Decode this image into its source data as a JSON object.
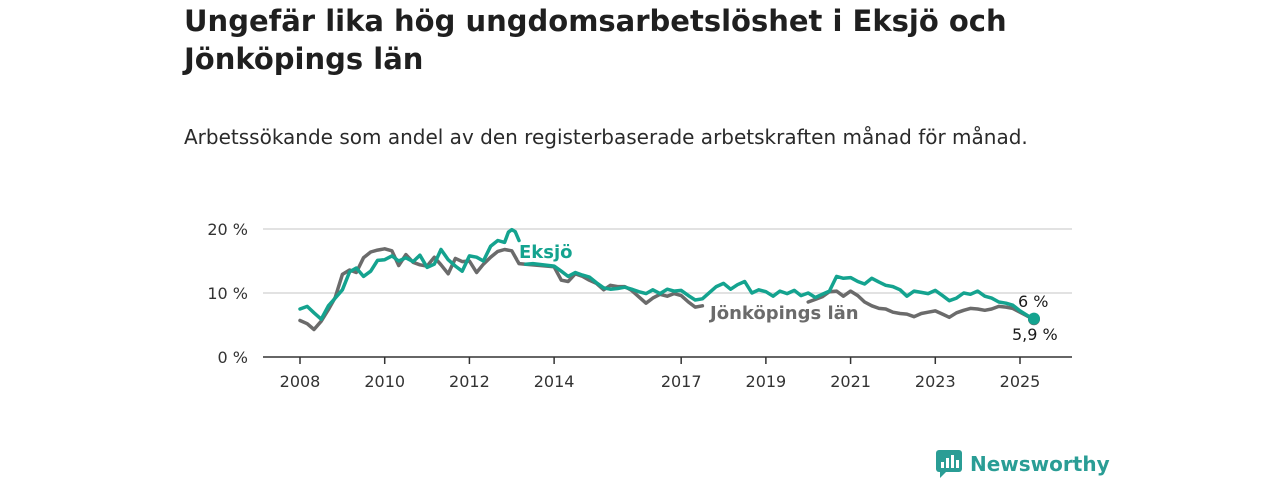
{
  "title": "Ungefär lika hög ungdomsarbetslöshet i Eksjö och Jönköpings län",
  "subtitle": "Arbetssökande som andel av den registerbaserade arbetskraften månad för månad.",
  "brand": {
    "name": "Newsworthy",
    "icon": "bar-chart-bubble-icon"
  },
  "colors": {
    "eksjo": "#14a38f",
    "jonkoping": "#6b6b6b",
    "grid": "#d8d8d8",
    "axis": "#333333",
    "brand": "#2a9d95"
  },
  "chart_data": {
    "type": "line",
    "title": "Ungefär lika hög ungdomsarbetslöshet i Eksjö och Jönköpings län",
    "subtitle": "Arbetssökande som andel av den registerbaserade arbetskraften månad för månad.",
    "xlabel": "",
    "ylabel": "",
    "xlim": [
      2008,
      2025.5
    ],
    "ylim": [
      0,
      20
    ],
    "grid": true,
    "legend": "inline",
    "x_ticks": [
      {
        "value": 2008,
        "label": "2008"
      },
      {
        "value": 2010,
        "label": "2010"
      },
      {
        "value": 2012,
        "label": "2012"
      },
      {
        "value": 2014,
        "label": "2014"
      },
      {
        "value": 2017,
        "label": "2017"
      },
      {
        "value": 2019,
        "label": "2019"
      },
      {
        "value": 2021,
        "label": "2021"
      },
      {
        "value": 2023,
        "label": "2023"
      },
      {
        "value": 2025,
        "label": "2025"
      }
    ],
    "y_ticks": [
      {
        "value": 0,
        "label": "0 %"
      },
      {
        "value": 10,
        "label": "10 %"
      },
      {
        "value": 20,
        "label": "20 %"
      }
    ],
    "series": [
      {
        "name": "Eksjö",
        "color": "#14a38f",
        "end_label": "6 %",
        "points": [
          [
            2008.0,
            7.5
          ],
          [
            2008.17,
            7.9
          ],
          [
            2008.33,
            6.9
          ],
          [
            2008.5,
            5.9
          ],
          [
            2008.67,
            8.0
          ],
          [
            2008.83,
            9.2
          ],
          [
            2009.0,
            10.5
          ],
          [
            2009.17,
            13.3
          ],
          [
            2009.33,
            13.9
          ],
          [
            2009.5,
            12.6
          ],
          [
            2009.67,
            13.4
          ],
          [
            2009.83,
            15.1
          ],
          [
            2010.0,
            15.2
          ],
          [
            2010.17,
            15.8
          ],
          [
            2010.33,
            15.0
          ],
          [
            2010.5,
            15.5
          ],
          [
            2010.67,
            14.9
          ],
          [
            2010.83,
            15.9
          ],
          [
            2011.0,
            14.0
          ],
          [
            2011.17,
            14.5
          ],
          [
            2011.33,
            16.8
          ],
          [
            2011.5,
            15.2
          ],
          [
            2011.67,
            14.2
          ],
          [
            2011.83,
            13.4
          ],
          [
            2012.0,
            15.8
          ],
          [
            2012.17,
            15.6
          ],
          [
            2012.33,
            15.0
          ],
          [
            2012.5,
            17.3
          ],
          [
            2012.67,
            18.2
          ],
          [
            2012.83,
            17.9
          ],
          [
            2012.92,
            19.5
          ],
          [
            2013.0,
            19.9
          ],
          [
            2013.08,
            19.6
          ],
          [
            2013.17,
            18.2
          ]
        ]
      },
      {
        "name": "Jönköpings län",
        "color": "#6b6b6b",
        "end_label": "5,9 %",
        "points": [
          [
            2008.0,
            5.7
          ],
          [
            2008.17,
            5.2
          ],
          [
            2008.33,
            4.3
          ],
          [
            2008.5,
            5.6
          ],
          [
            2008.67,
            7.4
          ],
          [
            2008.83,
            9.3
          ],
          [
            2009.0,
            12.9
          ],
          [
            2009.17,
            13.6
          ],
          [
            2009.33,
            13.2
          ],
          [
            2009.5,
            15.5
          ],
          [
            2009.67,
            16.4
          ],
          [
            2009.83,
            16.7
          ],
          [
            2010.0,
            16.9
          ],
          [
            2010.17,
            16.6
          ],
          [
            2010.33,
            14.3
          ],
          [
            2010.5,
            16.0
          ],
          [
            2010.67,
            14.8
          ],
          [
            2010.83,
            14.4
          ],
          [
            2011.0,
            14.2
          ],
          [
            2011.17,
            15.6
          ],
          [
            2011.33,
            14.4
          ],
          [
            2011.5,
            13.0
          ],
          [
            2011.67,
            15.4
          ],
          [
            2011.83,
            14.9
          ],
          [
            2012.0,
            15.0
          ],
          [
            2012.17,
            13.2
          ],
          [
            2012.33,
            14.5
          ],
          [
            2012.5,
            15.6
          ],
          [
            2012.67,
            16.5
          ],
          [
            2012.83,
            16.8
          ],
          [
            2013.0,
            16.6
          ],
          [
            2013.17,
            14.6
          ],
          [
            2013.33,
            14.5
          ],
          [
            2014.0,
            14.1
          ],
          [
            2014.17,
            12.0
          ],
          [
            2014.33,
            11.8
          ],
          [
            2014.5,
            13.0
          ],
          [
            2014.67,
            12.6
          ],
          [
            2014.83,
            12.0
          ],
          [
            2015.0,
            11.5
          ],
          [
            2015.17,
            10.5
          ],
          [
            2015.33,
            11.2
          ],
          [
            2015.5,
            11.0
          ],
          [
            2015.67,
            11.0
          ],
          [
            2015.83,
            10.4
          ],
          [
            2016.0,
            9.4
          ],
          [
            2016.17,
            8.4
          ],
          [
            2016.33,
            9.2
          ],
          [
            2016.5,
            9.8
          ],
          [
            2016.67,
            9.5
          ],
          [
            2016.83,
            9.9
          ],
          [
            2017.0,
            9.6
          ],
          [
            2017.17,
            8.6
          ],
          [
            2017.33,
            7.8
          ],
          [
            2017.5,
            8.0
          ]
        ]
      },
      {
        "name": "Eksjö (forts.)",
        "color": "#14a38f",
        "points": [
          [
            2013.33,
            14.5
          ],
          [
            2013.5,
            14.6
          ],
          [
            2014.0,
            14.2
          ],
          [
            2014.17,
            13.4
          ],
          [
            2014.33,
            12.6
          ],
          [
            2014.5,
            13.2
          ],
          [
            2014.67,
            12.8
          ],
          [
            2014.83,
            12.5
          ],
          [
            2015.0,
            11.6
          ],
          [
            2015.17,
            10.8
          ],
          [
            2015.33,
            10.6
          ],
          [
            2015.5,
            10.7
          ],
          [
            2015.67,
            10.9
          ],
          [
            2015.83,
            10.6
          ],
          [
            2016.0,
            10.2
          ],
          [
            2016.17,
            9.9
          ],
          [
            2016.33,
            10.5
          ],
          [
            2016.5,
            9.9
          ],
          [
            2016.67,
            10.6
          ],
          [
            2016.83,
            10.3
          ],
          [
            2017.0,
            10.4
          ],
          [
            2017.17,
            9.6
          ],
          [
            2017.33,
            8.9
          ],
          [
            2017.5,
            9.1
          ],
          [
            2017.67,
            10.1
          ],
          [
            2017.83,
            11.0
          ],
          [
            2018.0,
            11.5
          ],
          [
            2018.17,
            10.6
          ],
          [
            2018.33,
            11.3
          ],
          [
            2018.5,
            11.8
          ],
          [
            2018.67,
            10.0
          ],
          [
            2018.83,
            10.5
          ],
          [
            2019.0,
            10.2
          ],
          [
            2019.17,
            9.5
          ],
          [
            2019.33,
            10.3
          ],
          [
            2019.5,
            9.9
          ],
          [
            2019.67,
            10.4
          ],
          [
            2019.83,
            9.6
          ],
          [
            2020.0,
            10.0
          ],
          [
            2020.17,
            9.3
          ],
          [
            2020.33,
            9.8
          ],
          [
            2020.5,
            10.3
          ],
          [
            2020.67,
            12.6
          ],
          [
            2020.83,
            12.3
          ],
          [
            2021.0,
            12.4
          ],
          [
            2021.17,
            11.8
          ],
          [
            2021.33,
            11.4
          ],
          [
            2021.5,
            12.3
          ],
          [
            2021.67,
            11.7
          ],
          [
            2021.83,
            11.2
          ],
          [
            2022.0,
            11.0
          ],
          [
            2022.17,
            10.5
          ],
          [
            2022.33,
            9.5
          ],
          [
            2022.5,
            10.3
          ],
          [
            2022.67,
            10.1
          ],
          [
            2022.83,
            9.9
          ],
          [
            2023.0,
            10.4
          ],
          [
            2023.17,
            9.6
          ],
          [
            2023.33,
            8.8
          ],
          [
            2023.5,
            9.2
          ],
          [
            2023.67,
            10.0
          ],
          [
            2023.83,
            9.8
          ],
          [
            2024.0,
            10.3
          ],
          [
            2024.17,
            9.5
          ],
          [
            2024.33,
            9.2
          ],
          [
            2024.5,
            8.6
          ],
          [
            2024.67,
            8.4
          ],
          [
            2024.83,
            8.1
          ],
          [
            2025.0,
            7.2
          ],
          [
            2025.17,
            6.5
          ],
          [
            2025.33,
            6.0
          ]
        ]
      },
      {
        "name": "Jönköpings län (forts.)",
        "color": "#6b6b6b",
        "points": [
          [
            2020.0,
            8.6
          ],
          [
            2020.17,
            9.0
          ],
          [
            2020.33,
            9.4
          ],
          [
            2020.5,
            10.2
          ],
          [
            2020.67,
            10.3
          ],
          [
            2020.83,
            9.5
          ],
          [
            2021.0,
            10.3
          ],
          [
            2021.17,
            9.6
          ],
          [
            2021.33,
            8.6
          ],
          [
            2021.5,
            8.0
          ],
          [
            2021.67,
            7.6
          ],
          [
            2021.83,
            7.5
          ],
          [
            2022.0,
            7.0
          ],
          [
            2022.17,
            6.8
          ],
          [
            2022.33,
            6.7
          ],
          [
            2022.5,
            6.3
          ],
          [
            2022.67,
            6.8
          ],
          [
            2022.83,
            7.0
          ],
          [
            2023.0,
            7.2
          ],
          [
            2023.17,
            6.7
          ],
          [
            2023.33,
            6.2
          ],
          [
            2023.5,
            6.9
          ],
          [
            2023.67,
            7.3
          ],
          [
            2023.83,
            7.6
          ],
          [
            2024.0,
            7.5
          ],
          [
            2024.17,
            7.3
          ],
          [
            2024.33,
            7.5
          ],
          [
            2024.5,
            7.9
          ],
          [
            2024.67,
            7.8
          ],
          [
            2024.83,
            7.6
          ],
          [
            2025.0,
            7.0
          ],
          [
            2025.17,
            6.4
          ],
          [
            2025.33,
            5.9
          ]
        ]
      }
    ]
  }
}
